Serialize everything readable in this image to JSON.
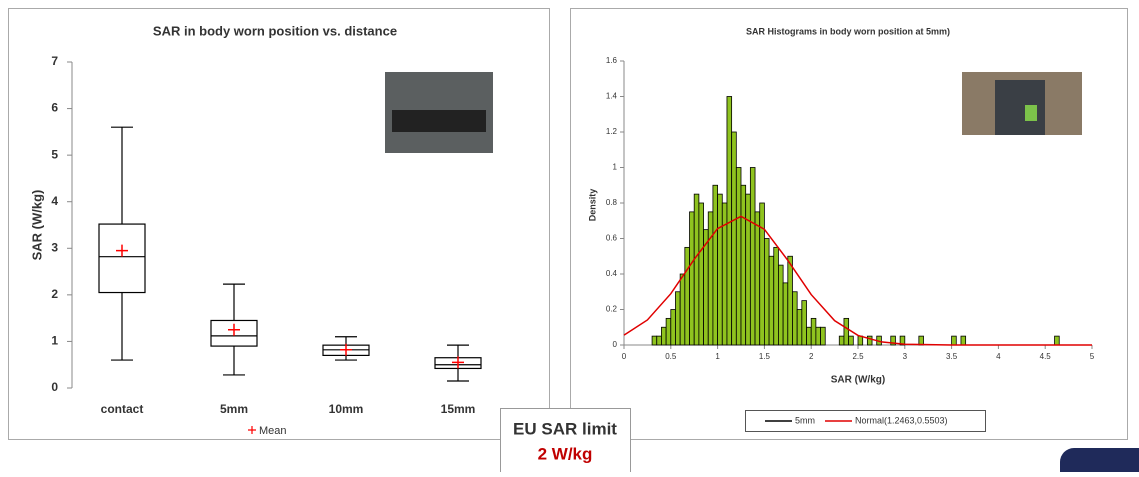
{
  "chart_data": [
    {
      "type": "box",
      "title": "SAR in body worn position vs. distance",
      "ylabel": "SAR (W/kg)",
      "categories": [
        "contact",
        "5mm",
        "10mm",
        "15mm"
      ],
      "min": [
        0.6,
        0.28,
        0.6,
        0.15
      ],
      "q1": [
        2.05,
        0.9,
        0.7,
        0.42
      ],
      "median": [
        2.82,
        1.12,
        0.82,
        0.5
      ],
      "q3": [
        3.52,
        1.45,
        0.92,
        0.65
      ],
      "max": [
        5.6,
        2.23,
        1.1,
        0.92
      ],
      "mean": [
        2.95,
        1.25,
        0.82,
        0.55
      ],
      "mean_label": "Mean",
      "color": "#000000",
      "mean_color": "#ff0000",
      "ylim": [
        0,
        7
      ],
      "yticks": [
        0,
        1,
        2,
        3,
        4,
        5,
        6,
        7
      ]
    },
    {
      "type": "histogram",
      "title": "SAR Histograms in body worn position at 5mm)",
      "xlabel": "SAR (W/kg)",
      "ylabel": "Density",
      "name": "5mm",
      "color": "#8fc31f",
      "line_color": "#000000",
      "bins": [
        0.3,
        0.35,
        0.4,
        0.45,
        0.5,
        0.55,
        0.6,
        0.65,
        0.7,
        0.75,
        0.8,
        0.85,
        0.9,
        0.95,
        1.0,
        1.05,
        1.1,
        1.15,
        1.2,
        1.25,
        1.3,
        1.35,
        1.4,
        1.45,
        1.5,
        1.55,
        1.6,
        1.65,
        1.7,
        1.75,
        1.8,
        1.85,
        1.9,
        1.95,
        2.0,
        2.05,
        2.1,
        2.15,
        2.2,
        2.25,
        2.3,
        2.35,
        2.4,
        2.45,
        2.5,
        2.55,
        2.6,
        2.65,
        2.7,
        2.75,
        2.8,
        2.85,
        2.9,
        2.95,
        3.0,
        3.05,
        3.1,
        3.15,
        3.2,
        3.25,
        3.3,
        3.35,
        3.4,
        3.45,
        3.5,
        3.55,
        3.6,
        3.65,
        3.7,
        3.75,
        3.8,
        3.85,
        3.9,
        3.95,
        4.0,
        4.05,
        4.1,
        4.15,
        4.2,
        4.25,
        4.3,
        4.35,
        4.4,
        4.45,
        4.5,
        4.55,
        4.6,
        4.65
      ],
      "counts": [
        0.05,
        0.05,
        0.1,
        0.15,
        0.2,
        0.3,
        0.4,
        0.55,
        0.75,
        0.85,
        0.8,
        0.65,
        0.75,
        0.9,
        0.85,
        0.8,
        1.4,
        1.2,
        1.0,
        0.9,
        0.85,
        1.0,
        0.75,
        0.8,
        0.6,
        0.5,
        0.55,
        0.45,
        0.35,
        0.5,
        0.3,
        0.2,
        0.25,
        0.1,
        0.15,
        0.1,
        0.1,
        0,
        0,
        0,
        0.05,
        0.15,
        0.05,
        0,
        0.05,
        0,
        0.05,
        0,
        0.05,
        0,
        0,
        0.05,
        0,
        0.05,
        0,
        0,
        0,
        0.05,
        0,
        0,
        0,
        0,
        0,
        0,
        0.05,
        0,
        0.05,
        0,
        0,
        0,
        0,
        0,
        0,
        0,
        0,
        0,
        0,
        0,
        0,
        0,
        0,
        0,
        0,
        0,
        0,
        0,
        0.05
      ],
      "curve": {
        "name": "Normal(1.2463,0.5503)",
        "color": "#e00000",
        "x": [
          0,
          0.25,
          0.5,
          0.75,
          1.0,
          1.25,
          1.5,
          1.75,
          2.0,
          2.25,
          2.5,
          2.75,
          3.0,
          3.5,
          4.0,
          5.0
        ],
        "values": [
          0.0558,
          0.141,
          0.289,
          0.483,
          0.656,
          0.725,
          0.652,
          0.477,
          0.284,
          0.137,
          0.054,
          0.0173,
          0.0045,
          0.0002,
          0,
          0
        ]
      },
      "xlim": [
        0,
        5
      ],
      "xticks": [
        0,
        0.5,
        1,
        1.5,
        2,
        2.5,
        3,
        3.5,
        4,
        4.5,
        5
      ],
      "ylim": [
        0,
        1.6
      ],
      "yticks": [
        0,
        0.2,
        0.4,
        0.6,
        0.8,
        1,
        1.2,
        1.4,
        1.6
      ]
    }
  ],
  "callout": {
    "title": "EU SAR limit",
    "value": "2 W/kg"
  }
}
